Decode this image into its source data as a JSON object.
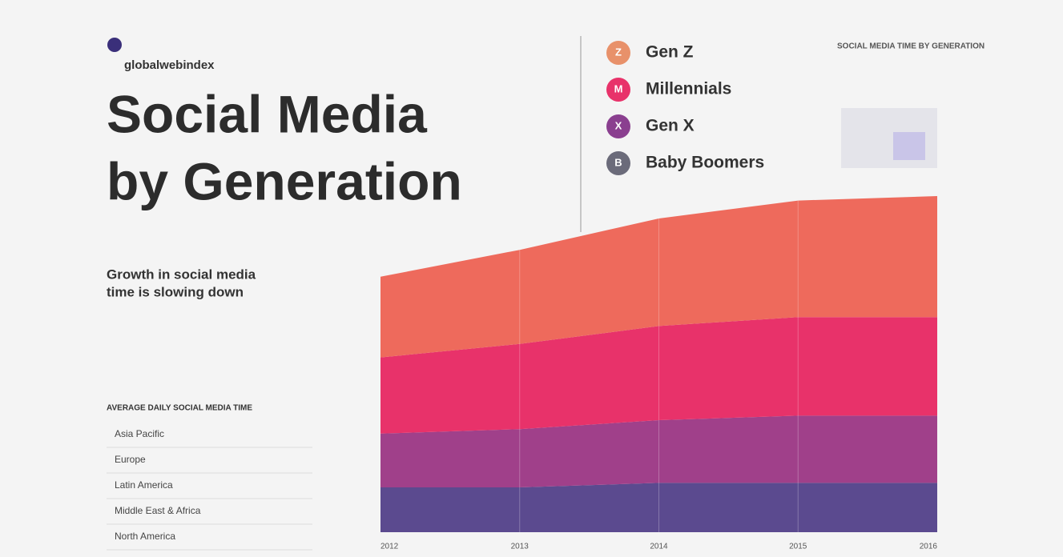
{
  "brand": "globalwebindex",
  "header": {
    "title_line1": "Social Media",
    "title_line2": "by Generation"
  },
  "side_note": {
    "title": "SOCIAL MEDIA TIME BY GENERATION"
  },
  "intro": {
    "headline_line1": "Growth in social media",
    "headline_line2": "time is slowing down"
  },
  "table": {
    "title": "AVERAGE DAILY SOCIAL MEDIA TIME",
    "rows": [
      "Asia Pacific",
      "Europe",
      "Latin America",
      "Middle East & Africa",
      "North America"
    ]
  },
  "chart_data": {
    "type": "stacked_area",
    "categories": [
      "2012",
      "2013",
      "2014",
      "2015",
      "2016"
    ],
    "series": [
      {
        "name": "Baby Boomers",
        "color": "#5b4a8f",
        "legend_color": "#6b6b7a",
        "legend_letter": "B",
        "values": [
          1.0,
          1.0,
          1.1,
          1.1,
          1.1
        ]
      },
      {
        "name": "Gen X",
        "color": "#a0408a",
        "legend_color": "#8a3f8f",
        "legend_letter": "X",
        "values": [
          1.2,
          1.3,
          1.4,
          1.5,
          1.5
        ]
      },
      {
        "name": "Millennials",
        "color": "#e8326a",
        "legend_color": "#e8326a",
        "legend_letter": "M",
        "values": [
          1.7,
          1.9,
          2.1,
          2.2,
          2.2
        ]
      },
      {
        "name": "Gen Z",
        "color": "#ee6a5c",
        "legend_color": "#e8916a",
        "legend_letter": "Z",
        "values": [
          1.8,
          2.1,
          2.4,
          2.6,
          2.7
        ]
      }
    ]
  }
}
